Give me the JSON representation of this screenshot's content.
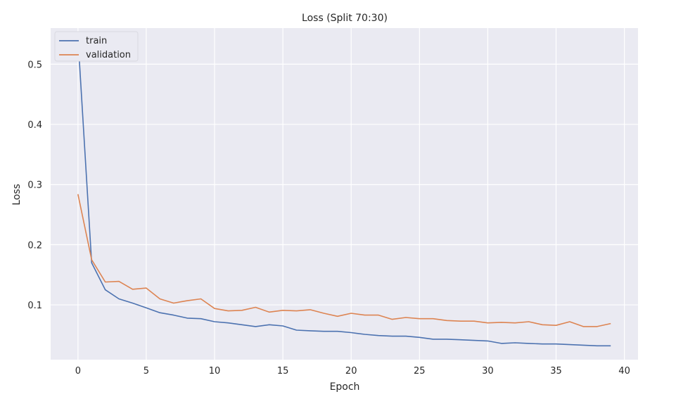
{
  "chart_data": {
    "type": "line",
    "title": "Loss (Split 70:30)",
    "xlabel": "Epoch",
    "ylabel": "Loss",
    "xlim": [
      -2,
      41
    ],
    "ylim": [
      0.009,
      0.56
    ],
    "xticks": [
      0,
      5,
      10,
      15,
      20,
      25,
      30,
      35,
      40
    ],
    "yticks": [
      0.1,
      0.2,
      0.3,
      0.4,
      0.5
    ],
    "grid": true,
    "legend": "top-left",
    "x": [
      0,
      1,
      2,
      3,
      4,
      5,
      6,
      7,
      8,
      9,
      10,
      11,
      12,
      13,
      14,
      15,
      16,
      17,
      18,
      19,
      20,
      21,
      22,
      23,
      24,
      25,
      26,
      27,
      28,
      29,
      30,
      31,
      32,
      33,
      34,
      35,
      36,
      37,
      38,
      39
    ],
    "series": [
      {
        "name": "train",
        "color": "#4c72b0",
        "values": [
          0.545,
          0.17,
          0.125,
          0.11,
          0.103,
          0.095,
          0.087,
          0.083,
          0.078,
          0.077,
          0.072,
          0.07,
          0.067,
          0.064,
          0.067,
          0.065,
          0.058,
          0.057,
          0.056,
          0.056,
          0.054,
          0.051,
          0.049,
          0.048,
          0.048,
          0.046,
          0.043,
          0.043,
          0.042,
          0.041,
          0.04,
          0.036,
          0.037,
          0.036,
          0.035,
          0.035,
          0.034,
          0.033,
          0.032,
          0.032
        ]
      },
      {
        "name": "validation",
        "color": "#dd8452",
        "values": [
          0.284,
          0.175,
          0.138,
          0.139,
          0.126,
          0.128,
          0.11,
          0.103,
          0.107,
          0.11,
          0.094,
          0.09,
          0.091,
          0.096,
          0.088,
          0.091,
          0.09,
          0.092,
          0.086,
          0.081,
          0.086,
          0.083,
          0.083,
          0.076,
          0.079,
          0.077,
          0.077,
          0.074,
          0.073,
          0.073,
          0.07,
          0.071,
          0.07,
          0.072,
          0.067,
          0.066,
          0.072,
          0.064,
          0.064,
          0.069
        ]
      }
    ]
  }
}
